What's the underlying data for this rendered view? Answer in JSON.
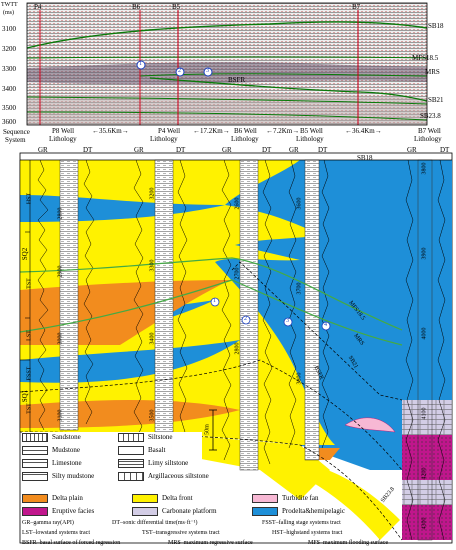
{
  "seismic": {
    "axis_title": "TWTT",
    "axis_unit": "(ms)",
    "ticks": [
      "3100",
      "3200",
      "3300",
      "3400",
      "3500",
      "3600"
    ],
    "wells": [
      "P4",
      "B6",
      "B5",
      "B7"
    ],
    "surfaces": [
      "SB18",
      "MFS18.5",
      "MRS",
      "BSFR",
      "SB21",
      "SB23.8"
    ],
    "circles": [
      "1",
      "2",
      "3"
    ]
  },
  "section": {
    "header_sequence": "Sequence",
    "header_system": "System",
    "wells": [
      {
        "name": "P8 Well",
        "lith": "Lithology",
        "gr": "GR",
        "dt": "DT"
      },
      {
        "name": "P4 Well",
        "lith": "Lithology",
        "gr": "GR",
        "dt": "DT"
      },
      {
        "name": "B6 Well",
        "lith": "Lithology",
        "gr": "GR",
        "dt": "DT"
      },
      {
        "name": "B5 Well",
        "lith": "Lithology",
        "gr": "GR",
        "dt": "DT"
      },
      {
        "name": "B7 Well",
        "lith": "Lithology",
        "gr": "GR",
        "dt": "DT"
      }
    ],
    "distances": [
      "35.6Km",
      "17.2Km",
      "7.2Km",
      "36.4Km"
    ],
    "sequences": [
      "SQ2",
      "SQ1"
    ],
    "systems": [
      "HST",
      "TST",
      "LST",
      "FSST",
      "TST"
    ],
    "depths": {
      "p8": [
        "2800",
        "2900",
        "3000",
        "3100"
      ],
      "p4": [
        "3200",
        "3300",
        "3400",
        "3500"
      ],
      "b6": [
        "2600",
        "2700",
        "2800"
      ],
      "b5": [
        "3600",
        "3700",
        "3800"
      ],
      "b7": [
        "3800",
        "3900",
        "4000",
        "4100",
        "4200",
        "4300"
      ]
    },
    "surfaces": [
      "SB18",
      "MFS18.5",
      "MRS",
      "SB21",
      "BSFR",
      "SB23.8"
    ],
    "scale": "50m",
    "circles": [
      "1",
      "2",
      "3",
      "4"
    ]
  },
  "legend": {
    "lithology": [
      "Sandstone",
      "Siltstone",
      "Mudstone",
      "Basalt",
      "Limestone",
      "Limy siltstone",
      "Silty mudstone",
      "Argillaceous siltstone"
    ],
    "facies": [
      {
        "label": "Delta plain",
        "color": "#f28c1e"
      },
      {
        "label": "Delta front",
        "color": "#fff200"
      },
      {
        "label": "Turbidite fan",
        "color": "#f7b8d4"
      },
      {
        "label": "Eruptive facies",
        "color": "#c0168c"
      },
      {
        "label": "Carbonate platform",
        "color": "#d3cde6"
      },
      {
        "label": "Prodelta&hemipelagic",
        "color": "#1e8fd8"
      }
    ],
    "abbreviations": [
      "GR–gamma ray(API)",
      "DT–sonic differential time(ms·ft⁻¹)",
      "FSST–falling stage systems tract",
      "LST–lowstand systems tract",
      "TST–transgressive systems tract",
      "HST–highstand systems tract",
      "BSFR–basal surface of forced regression",
      "MRS–maximum regressive surface",
      "MFS–maximum flooding surface"
    ]
  }
}
